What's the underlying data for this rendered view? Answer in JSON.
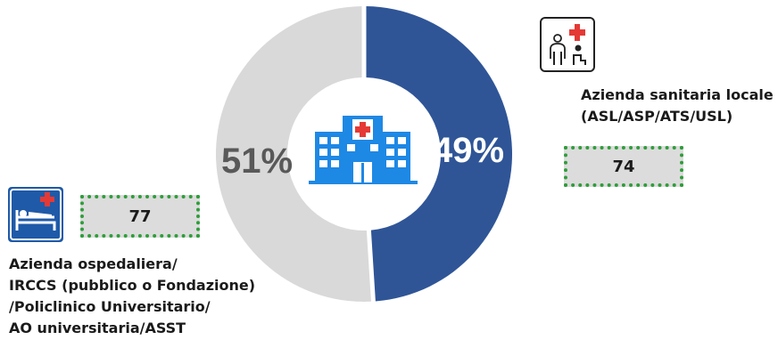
{
  "chart_data": {
    "type": "pie",
    "variant": "donut",
    "slices": [
      {
        "value": 49,
        "label": "49%",
        "color": "#2f5597"
      },
      {
        "value": 51,
        "label": "51%",
        "color": "#d9d9d9"
      }
    ]
  },
  "categories": {
    "asl": {
      "label_line1": "Azienda sanitaria locale",
      "label_line2": "(ASL/ASP/ATS/USL)",
      "count": "74",
      "icon": "doctor-patient-icon"
    },
    "ao": {
      "label_line1": "Azienda ospedaliera/",
      "label_line2": "IRCCS (pubblico o Fondazione)",
      "label_line3": "/Policlinico Universitario/",
      "label_line4": "AO universitaria/ASST",
      "count": "77",
      "icon": "hospital-bed-icon"
    }
  },
  "center_icon": "hospital-building-icon",
  "colors": {
    "accent": "#2f5597",
    "box_border": "#2e9e3a",
    "icon_blue": "#1e88e5",
    "red_cross": "#e53935"
  }
}
